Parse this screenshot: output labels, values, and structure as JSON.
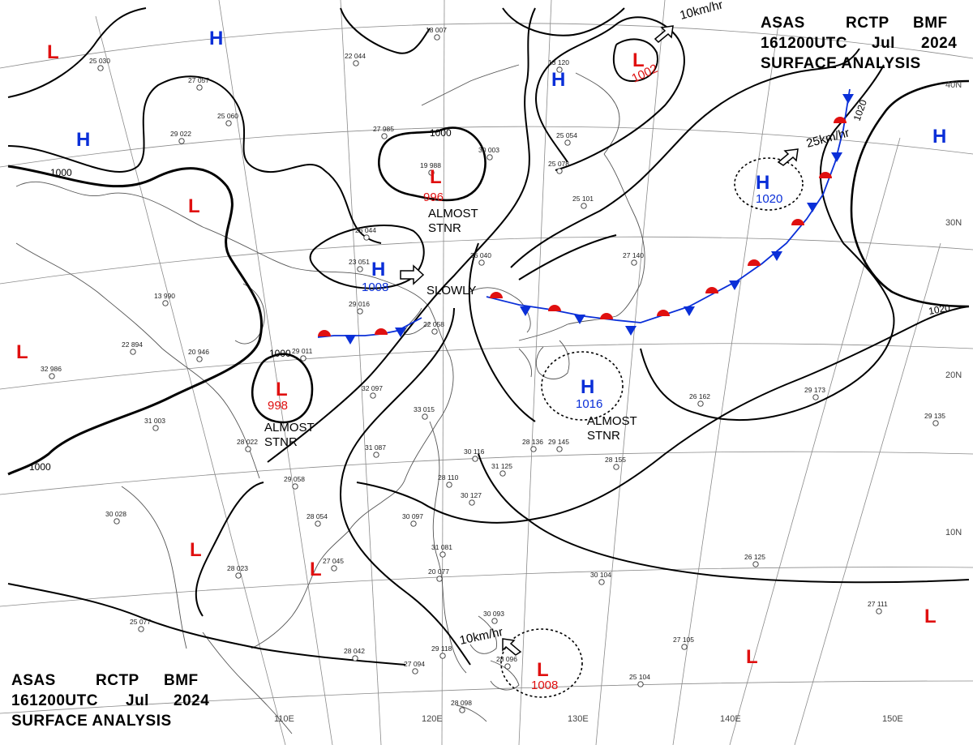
{
  "chart": {
    "agency_header": [
      "ASAS",
      "RCTP",
      "BMF"
    ],
    "time_line": [
      "161200UTC",
      "Jul",
      "2024"
    ],
    "product": "SURFACE  ANALYSIS"
  },
  "grid": {
    "longitude_labels": [
      "110E",
      "120E",
      "130E",
      "140E",
      "150E"
    ],
    "latitude_labels": [
      "40N",
      "30N",
      "20N",
      "10N"
    ]
  },
  "isobar_labels": [
    "1000",
    "1000",
    "1000",
    "1000",
    "1020",
    "1020"
  ],
  "pressure_systems": [
    {
      "type": "L",
      "value": ""
    },
    {
      "type": "H",
      "value": ""
    },
    {
      "type": "H",
      "value": ""
    },
    {
      "type": "L",
      "value": ""
    },
    {
      "type": "L",
      "value": "996"
    },
    {
      "type": "H",
      "value": "1008"
    },
    {
      "type": "L",
      "value": "998"
    },
    {
      "type": "H",
      "value": "1016"
    },
    {
      "type": "H",
      "value": "1020"
    },
    {
      "type": "L",
      "value": "1002"
    },
    {
      "type": "H",
      "value": ""
    },
    {
      "type": "L",
      "value": ""
    },
    {
      "type": "L",
      "value": ""
    },
    {
      "type": "L",
      "value": ""
    },
    {
      "type": "L",
      "value": ""
    },
    {
      "type": "L",
      "value": ""
    },
    {
      "type": "L",
      "value": "1008"
    },
    {
      "type": "H",
      "value": ""
    }
  ],
  "annotations": {
    "almost_stnr_1": "ALMOST STNR",
    "almost_stnr_2": "ALMOST STNR",
    "almost_stnr_3": "ALMOST STNR",
    "slowly": "SLOWLY",
    "motion_10kmhr_top": "10km/hr",
    "motion_25kmhr": "25km/hr",
    "motion_10kmhr_bottom": "10km/hr"
  },
  "station_labels": [
    "25 030",
    "27 057",
    "25 060",
    "29 022",
    "27 985",
    "19 988",
    "30 003",
    "18 007",
    "22 044",
    "13 120",
    "25 054",
    "25 078",
    "26 044",
    "23 051",
    "29 016",
    "13 990",
    "22 894",
    "20 946",
    "32 986",
    "29 011",
    "26 040",
    "22 058",
    "25 101",
    "27 140",
    "31 003",
    "28 022",
    "32 097",
    "33 015",
    "31 087",
    "28 136",
    "29 145",
    "26 162",
    "29 173",
    "28 155",
    "30 116",
    "31 125",
    "30 127",
    "28 110",
    "30 097",
    "28 054",
    "29 058",
    "27 045",
    "30 028",
    "28 023",
    "25 077",
    "28 042",
    "27 094",
    "29 118",
    "28 096",
    "28 098",
    "31 081",
    "20 077",
    "30 093",
    "30 104",
    "27 105",
    "25 104",
    "26 125",
    "27 111",
    "29 135"
  ],
  "colors": {
    "high": "#0a2fd8",
    "low": "#e01010",
    "isobar": "#000000",
    "coast": "#555555",
    "grid": "#888888",
    "warm_front": "#e01010",
    "cold_front": "#0a2fd8"
  }
}
